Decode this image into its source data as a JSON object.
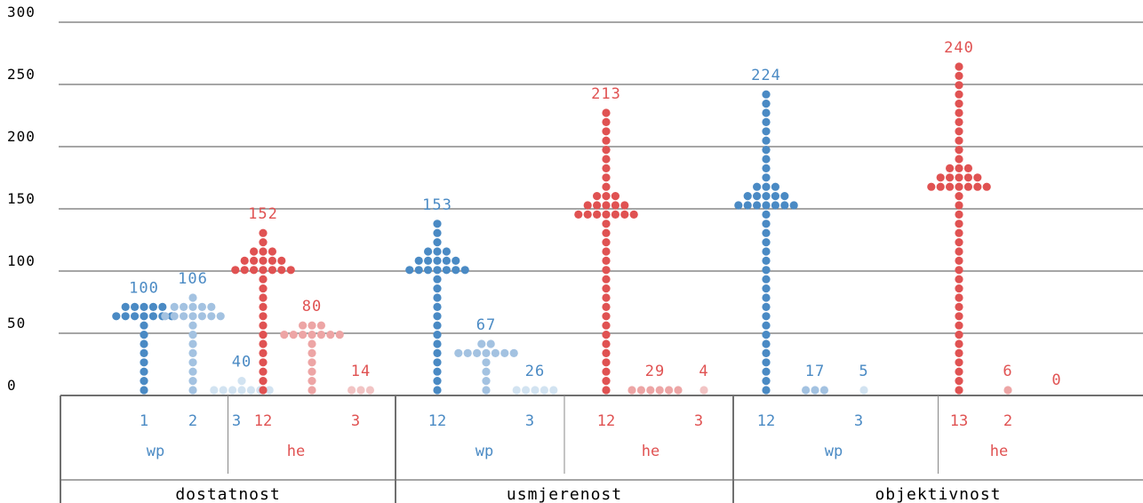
{
  "chart_data": {
    "type": "dot-histogram",
    "title": "",
    "xlabel": "",
    "ylabel": "",
    "ylim": [
      0,
      300
    ],
    "yticks": [
      0,
      50,
      100,
      150,
      200,
      250,
      300
    ],
    "grid": true,
    "colors": {
      "wp": [
        "#4a8ac4",
        "#a3c2e1",
        "#d2e3f1"
      ],
      "he": [
        "#e05252",
        "#eda5a5",
        "#f2c4c4"
      ]
    },
    "groups": [
      {
        "name": "dostatnost",
        "sources": [
          {
            "name": "wp",
            "subs": [
              {
                "label": "1",
                "value": 100
              },
              {
                "label": "2",
                "value": 106
              },
              {
                "label": "3",
                "value": 40
              }
            ]
          },
          {
            "name": "he",
            "subs": [
              {
                "label": "12",
                "value": 152
              },
              {
                "label": "",
                "value": 80
              },
              {
                "label": "3",
                "value": 14
              }
            ]
          }
        ]
      },
      {
        "name": "usmjerenost",
        "sources": [
          {
            "name": "wp",
            "subs": [
              {
                "label": "12",
                "value": 153
              },
              {
                "label": "",
                "value": 67
              },
              {
                "label": "3",
                "value": 26
              }
            ]
          },
          {
            "name": "he",
            "subs": [
              {
                "label": "12",
                "value": 213
              },
              {
                "label": "",
                "value": 29
              },
              {
                "label": "3",
                "value": 4
              }
            ]
          }
        ]
      },
      {
        "name": "objektivnost",
        "sources": [
          {
            "name": "wp",
            "subs": [
              {
                "label": "12",
                "value": 224
              },
              {
                "label": "",
                "value": 17
              },
              {
                "label": "3",
                "value": 5
              }
            ]
          },
          {
            "name": "he",
            "subs": [
              {
                "label": "13",
                "value": 240
              },
              {
                "label": "2",
                "value": 6
              },
              {
                "label": "",
                "value": 0
              }
            ]
          }
        ]
      }
    ]
  }
}
